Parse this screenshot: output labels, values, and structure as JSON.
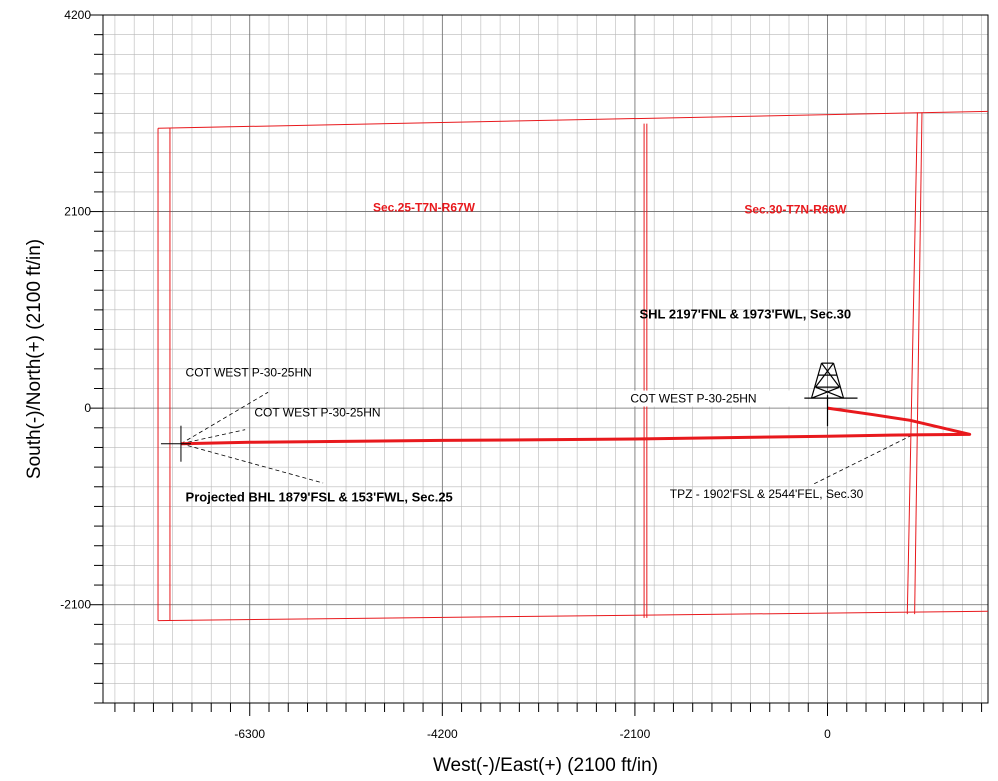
{
  "chart_data": {
    "type": "line",
    "xlabel": "West(-)/East(+) (2100 ft/in)",
    "ylabel": "South(-)/North(+) (2100 ft/in)",
    "xlim": [
      -7900,
      1750
    ],
    "ylim": [
      -3150,
      4200
    ],
    "x_ticks": [
      -6300,
      -4200,
      -2100,
      0
    ],
    "y_ticks": [
      4200,
      2100,
      0,
      -2100
    ],
    "grid": true,
    "colors": {
      "boundary": "#e8191d",
      "wellpath": "#e8191d",
      "grid": "#b9b9b9"
    },
    "section_boundaries": [
      {
        "x": [
          -7300,
          1750
        ],
        "y": [
          2990,
          3170
        ]
      },
      {
        "x": [
          -7300,
          1750
        ],
        "y": [
          -2270,
          -2170
        ]
      },
      {
        "x": [
          -7300,
          -7300
        ],
        "y": [
          2990,
          -2270
        ]
      },
      {
        "x": [
          -7170,
          -7170
        ],
        "y": [
          2990,
          -2270
        ]
      },
      {
        "x": [
          -2000,
          -2000
        ],
        "y": [
          3040,
          -2240
        ]
      },
      {
        "x": [
          -1970,
          -1970
        ],
        "y": [
          3040,
          -2240
        ]
      },
      {
        "x": [
          980,
          870
        ],
        "y": [
          3160,
          -2200
        ]
      },
      {
        "x": [
          1030,
          950
        ],
        "y": [
          3160,
          -2200
        ]
      }
    ],
    "wellpath": {
      "name": "COT WEST P-30-25HN",
      "x": [
        0,
        500,
        900,
        1550,
        900,
        0,
        -2100,
        -4200,
        -6300,
        -7050
      ],
      "y": [
        0,
        -70,
        -130,
        -280,
        -285,
        -300,
        -330,
        -345,
        -365,
        -380
      ]
    },
    "rig": {
      "x": 0,
      "y": 0
    },
    "section_labels": [
      {
        "text": "Sec.25-T7N-R67W",
        "x": -4400,
        "y": 2100
      },
      {
        "text": "Sec.30-T7N-R66W",
        "x": -350,
        "y": 2080
      }
    ],
    "annotations": [
      {
        "text": "SHL 2197'FNL & 1973'FWL, Sec.30",
        "x": -2050,
        "y": 960,
        "bold": true
      },
      {
        "text": "COT WEST P-30-25HN",
        "x": -7000,
        "y": 340,
        "bold": false
      },
      {
        "text": "COT WEST P-30-25HN",
        "x": -6250,
        "y": -90,
        "bold": false
      },
      {
        "text": "COT WEST P-30-25HN",
        "x": -2150,
        "y": 60,
        "bold": false
      },
      {
        "text": "Projected BHL 1879'FSL & 153'FWL, Sec.25",
        "x": -7000,
        "y": -1000,
        "bold": true
      },
      {
        "text": "TPZ - 1902'FSL & 2544'FEL, Sec.30",
        "x": -1720,
        "y": -960,
        "bold": false
      }
    ],
    "leaders": [
      {
        "x": [
          -7050,
          -6100
        ],
        "y": [
          -380,
          170
        ]
      },
      {
        "x": [
          -7050,
          -6350
        ],
        "y": [
          -380,
          -230
        ]
      },
      {
        "x": [
          -7050,
          -5500
        ],
        "y": [
          -380,
          -800
        ]
      },
      {
        "x": [
          920,
          -150
        ],
        "y": [
          -290,
          -810
        ]
      }
    ]
  }
}
